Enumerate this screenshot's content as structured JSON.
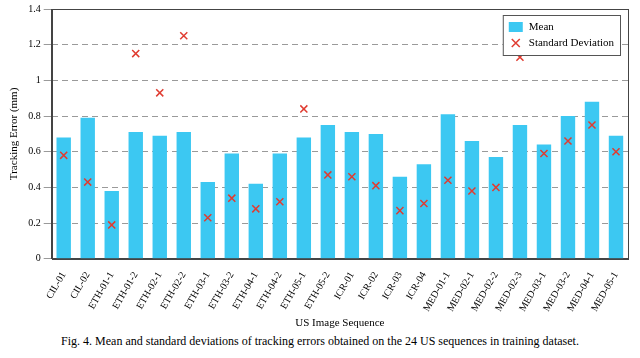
{
  "chart_data": {
    "type": "bar",
    "caption": "Fig. 4. Mean and standard deviations of tracking errors obtained on the 24 US sequences in training dataset.",
    "x_label": "US Image Sequence",
    "y_label": "Tracking Error (mm)",
    "categories": [
      "CIL-01",
      "CIL-02",
      "ETH-01-1",
      "ETH-01-2",
      "ETH-02-1",
      "ETH-02-2",
      "ETH-03-1",
      "ETH-03-2",
      "ETH-04-1",
      "ETH-04-2",
      "ETH-05-1",
      "ETH-05-2",
      "ICR-01",
      "ICR-02",
      "ICR-03",
      "ICR-04",
      "MED-01-1",
      "MED-02-1",
      "MED-02-2",
      "MED-02-3",
      "MED-03-1",
      "MED-03-2",
      "MED-04-1",
      "MED-05-1"
    ],
    "series": [
      {
        "name": "Mean",
        "type": "bar",
        "color": "#3cc8f2",
        "values": [
          0.68,
          0.79,
          0.38,
          0.71,
          0.69,
          0.71,
          0.43,
          0.59,
          0.42,
          0.59,
          0.68,
          0.75,
          0.71,
          0.7,
          0.46,
          0.53,
          0.81,
          0.66,
          0.57,
          0.75,
          0.64,
          0.8,
          0.88,
          0.69
        ]
      },
      {
        "name": "Standard Deviation",
        "type": "scatter",
        "marker": "cross",
        "color": "#e03c31",
        "values": [
          0.58,
          0.43,
          0.19,
          1.15,
          0.93,
          1.25,
          0.23,
          0.34,
          0.28,
          0.32,
          0.84,
          0.47,
          0.46,
          0.41,
          0.27,
          0.31,
          0.44,
          0.38,
          0.4,
          1.13,
          0.59,
          0.66,
          0.75,
          0.6
        ]
      }
    ],
    "ylim": [
      0,
      1.4
    ],
    "yticks": [
      0,
      0.2,
      0.4,
      0.6,
      0.8,
      1,
      1.2,
      1.4
    ],
    "grid": true,
    "legend": "top-right"
  }
}
